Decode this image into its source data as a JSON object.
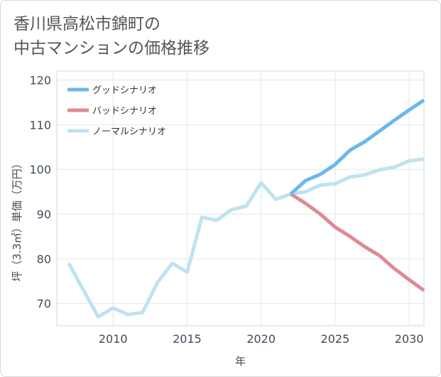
{
  "title_lines": [
    "香川県高松市錦町の",
    "中古マンションの価格推移"
  ],
  "chart_data": {
    "type": "line",
    "title": "香川県高松市錦町の中古マンションの価格推移",
    "xlabel": "年",
    "ylabel": "坪（3.3㎡）単価（万円）",
    "xlim": [
      2006.2,
      2031
    ],
    "ylim": [
      65,
      122
    ],
    "x_ticks": [
      2010,
      2015,
      2020,
      2025,
      2030
    ],
    "y_ticks": [
      70,
      80,
      90,
      100,
      110,
      120
    ],
    "grid": true,
    "legend_position": "top-left",
    "series": [
      {
        "name": "ノーマルシナリオ",
        "color": "#bfe2f0",
        "x": [
          2007,
          2008,
          2009,
          2010,
          2011,
          2012,
          2013,
          2014,
          2015,
          2016,
          2017,
          2018,
          2019,
          2020,
          2021,
          2022,
          2023,
          2024,
          2025,
          2026,
          2027,
          2028,
          2029,
          2030,
          2031
        ],
        "values": [
          79.0,
          73.0,
          67.0,
          69.0,
          67.5,
          68.0,
          74.7,
          79.0,
          77.0,
          89.3,
          88.6,
          91.0,
          91.8,
          97.0,
          93.3,
          94.5,
          95.0,
          96.5,
          96.8,
          98.3,
          98.8,
          99.9,
          100.5,
          101.9,
          102.3
        ]
      },
      {
        "name": "バッドシナリオ",
        "color": "#dc8b93",
        "x": [
          2022,
          2023,
          2024,
          2025,
          2026,
          2027,
          2028,
          2029,
          2030,
          2031
        ],
        "values": [
          94.5,
          92.4,
          90.0,
          87.1,
          85.0,
          82.7,
          80.7,
          77.8,
          75.3,
          72.9
        ]
      },
      {
        "name": "グッドシナリオ",
        "color": "#6bb8ea",
        "x": [
          2022,
          2023,
          2024,
          2025,
          2026,
          2027,
          2028,
          2029,
          2030,
          2031
        ],
        "values": [
          94.5,
          97.5,
          98.9,
          101.1,
          104.3,
          106.2,
          108.6,
          111.0,
          113.3,
          115.5
        ]
      }
    ]
  }
}
